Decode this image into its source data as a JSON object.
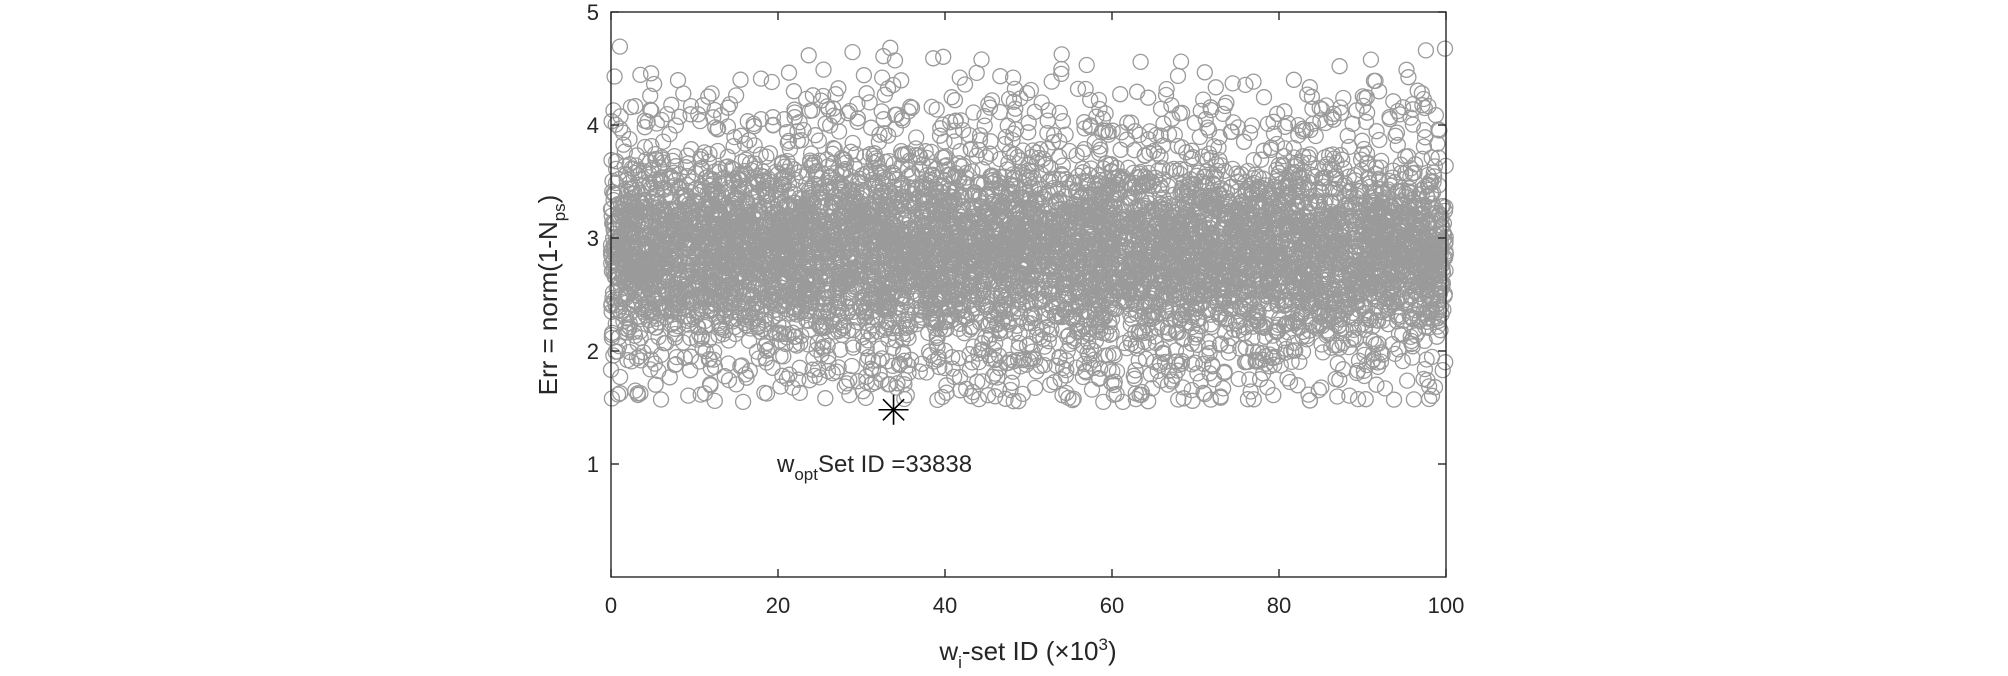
{
  "chart_data": {
    "type": "scatter",
    "title": "",
    "xlabel": {
      "main": "w",
      "subscript": "i",
      "rest": "-set ID (",
      "times": "×",
      "base": "10",
      "exponent": "3",
      "close": ")"
    },
    "ylabel": {
      "main": "Err = norm(1-N",
      "subscript": "ps",
      "close": ")"
    },
    "xlim": [
      0,
      100
    ],
    "ylim": [
      0,
      5
    ],
    "x_ticks": [
      0,
      20,
      40,
      60,
      80,
      100
    ],
    "y_ticks": [
      1,
      2,
      3,
      4,
      5
    ],
    "x_tick_labels": [
      "0",
      "20",
      "40",
      "60",
      "80",
      "100"
    ],
    "y_tick_labels": [
      "1",
      "2",
      "3",
      "4",
      "5"
    ],
    "grid": false,
    "legend": "none",
    "series": [
      {
        "marker": "open-circle",
        "color": "#9a9a9a",
        "point_count": 100000,
        "x_range": [
          0,
          100
        ],
        "dense_band": [
          1.9,
          3.9
        ],
        "y_min": 1.5,
        "y_max": 4.8
      }
    ],
    "optimum": {
      "x": 33.838,
      "y": 1.48,
      "marker": "asterisk",
      "color": "#000000"
    },
    "annotation": {
      "main": "w",
      "subscript": "opt",
      "rest": "Set ID =33838"
    }
  }
}
